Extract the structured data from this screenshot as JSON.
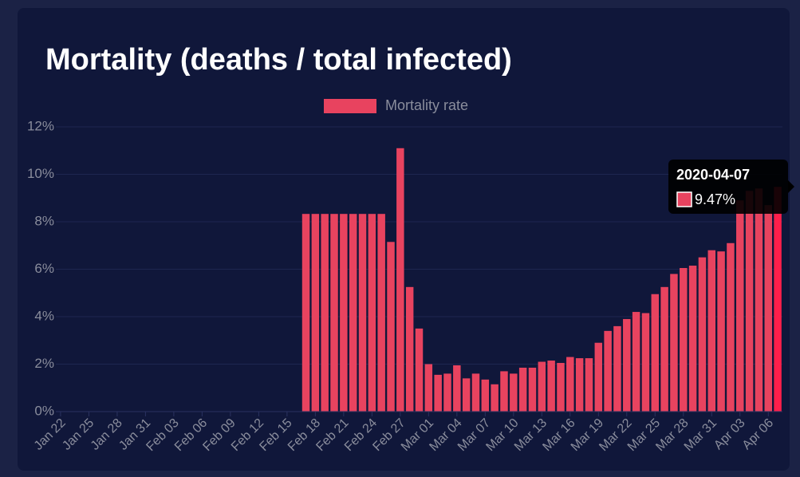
{
  "chart_data": {
    "type": "bar",
    "title": "Mortality (deaths / total infected)",
    "categories": [
      "Jan 22",
      null,
      null,
      "Jan 25",
      null,
      null,
      "Jan 28",
      null,
      null,
      "Jan 31",
      null,
      null,
      "Feb 03",
      null,
      null,
      "Feb 06",
      null,
      null,
      "Feb 09",
      null,
      null,
      "Feb 12",
      null,
      null,
      "Feb 15",
      null,
      null,
      "Feb 18",
      null,
      null,
      "Feb 21",
      null,
      null,
      "Feb 24",
      null,
      null,
      "Feb 27",
      null,
      null,
      "Mar 01",
      null,
      null,
      "Mar 04",
      null,
      null,
      "Mar 07",
      null,
      null,
      "Mar 10",
      null,
      null,
      "Mar 13",
      null,
      null,
      "Mar 16",
      null,
      null,
      "Mar 19",
      null,
      null,
      "Mar 22",
      null,
      null,
      "Mar 25",
      null,
      null,
      "Mar 28",
      null,
      null,
      "Mar 31",
      null,
      null,
      "Apr 03",
      null,
      null,
      "Apr 06",
      null
    ],
    "series": [
      {
        "name": "Mortality rate",
        "color": "#e8435f",
        "values": [
          0,
          0,
          0,
          0,
          0,
          0,
          0,
          0,
          0,
          0,
          0,
          0,
          0,
          0,
          0,
          0,
          0,
          0,
          0,
          0,
          0,
          0,
          0,
          0,
          0,
          0,
          8.33,
          8.33,
          8.33,
          8.33,
          8.33,
          8.33,
          8.33,
          8.33,
          8.33,
          7.15,
          11.1,
          5.25,
          3.5,
          2.0,
          1.55,
          1.6,
          1.95,
          1.4,
          1.6,
          1.35,
          1.15,
          1.7,
          1.6,
          1.85,
          1.85,
          2.1,
          2.15,
          2.05,
          2.3,
          2.25,
          2.25,
          2.9,
          3.4,
          3.6,
          3.9,
          4.2,
          4.15,
          4.95,
          5.25,
          5.8,
          6.05,
          6.15,
          6.5,
          6.8,
          6.75,
          7.1,
          8.9,
          9.3,
          9.4,
          8.7,
          9.47
        ]
      }
    ],
    "ylim": [
      0,
      12
    ],
    "yticks": [
      {
        "value": 0,
        "label": "0%"
      },
      {
        "value": 2,
        "label": "2%"
      },
      {
        "value": 4,
        "label": "4%"
      },
      {
        "value": 6,
        "label": "6%"
      },
      {
        "value": 8,
        "label": "8%"
      },
      {
        "value": 10,
        "label": "10%"
      },
      {
        "value": 12,
        "label": "12%"
      }
    ],
    "grid": true,
    "legend": "top",
    "tooltip": {
      "title": "2020-04-07",
      "label": "9.47%"
    }
  }
}
